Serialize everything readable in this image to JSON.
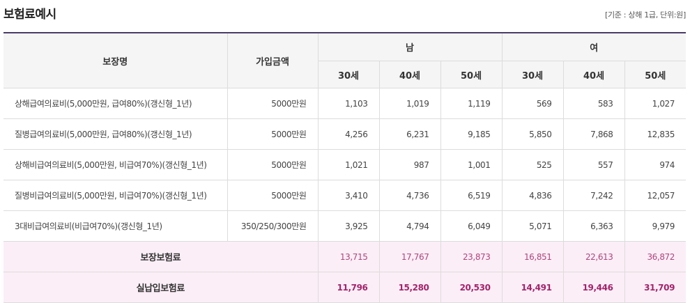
{
  "header": {
    "title": "보험료예시",
    "note": "[기준 : 상해 1급, 단위:원]"
  },
  "columns": {
    "name": "보장명",
    "amount": "가입금액",
    "male": "남",
    "female": "여",
    "ages": [
      "30세",
      "40세",
      "50세",
      "30세",
      "40세",
      "50세"
    ]
  },
  "rows": [
    {
      "name": "상해급여의료비(5,000만원, 급여80%)(갱신형_1년)",
      "amount": "5000만원",
      "values": [
        "1,103",
        "1,019",
        "1,119",
        "569",
        "583",
        "1,027"
      ]
    },
    {
      "name": "질병급여의료비(5,000만원, 급여80%)(갱신형_1년)",
      "amount": "5000만원",
      "values": [
        "4,256",
        "6,231",
        "9,185",
        "5,850",
        "7,868",
        "12,835"
      ]
    },
    {
      "name": "상해비급여의료비(5,000만원, 비급여70%)(갱신형_1년)",
      "amount": "5000만원",
      "values": [
        "1,021",
        "987",
        "1,001",
        "525",
        "557",
        "974"
      ]
    },
    {
      "name": "질병비급여의료비(5,000만원, 비급여70%)(갱신형_1년)",
      "amount": "5000만원",
      "values": [
        "3,410",
        "4,736",
        "6,519",
        "4,836",
        "7,242",
        "12,057"
      ]
    },
    {
      "name": "3대비급여의료비(비급여70%)(갱신형_1년)",
      "amount": "350/250/300만원",
      "values": [
        "3,925",
        "4,794",
        "6,049",
        "5,071",
        "6,363",
        "9,979"
      ]
    }
  ],
  "totals": [
    {
      "label": "보장보험료",
      "values": [
        "13,715",
        "17,767",
        "23,873",
        "16,851",
        "22,613",
        "36,872"
      ]
    },
    {
      "label": "실납입보험료",
      "values": [
        "11,796",
        "15,280",
        "20,530",
        "14,491",
        "19,446",
        "31,709"
      ]
    }
  ]
}
